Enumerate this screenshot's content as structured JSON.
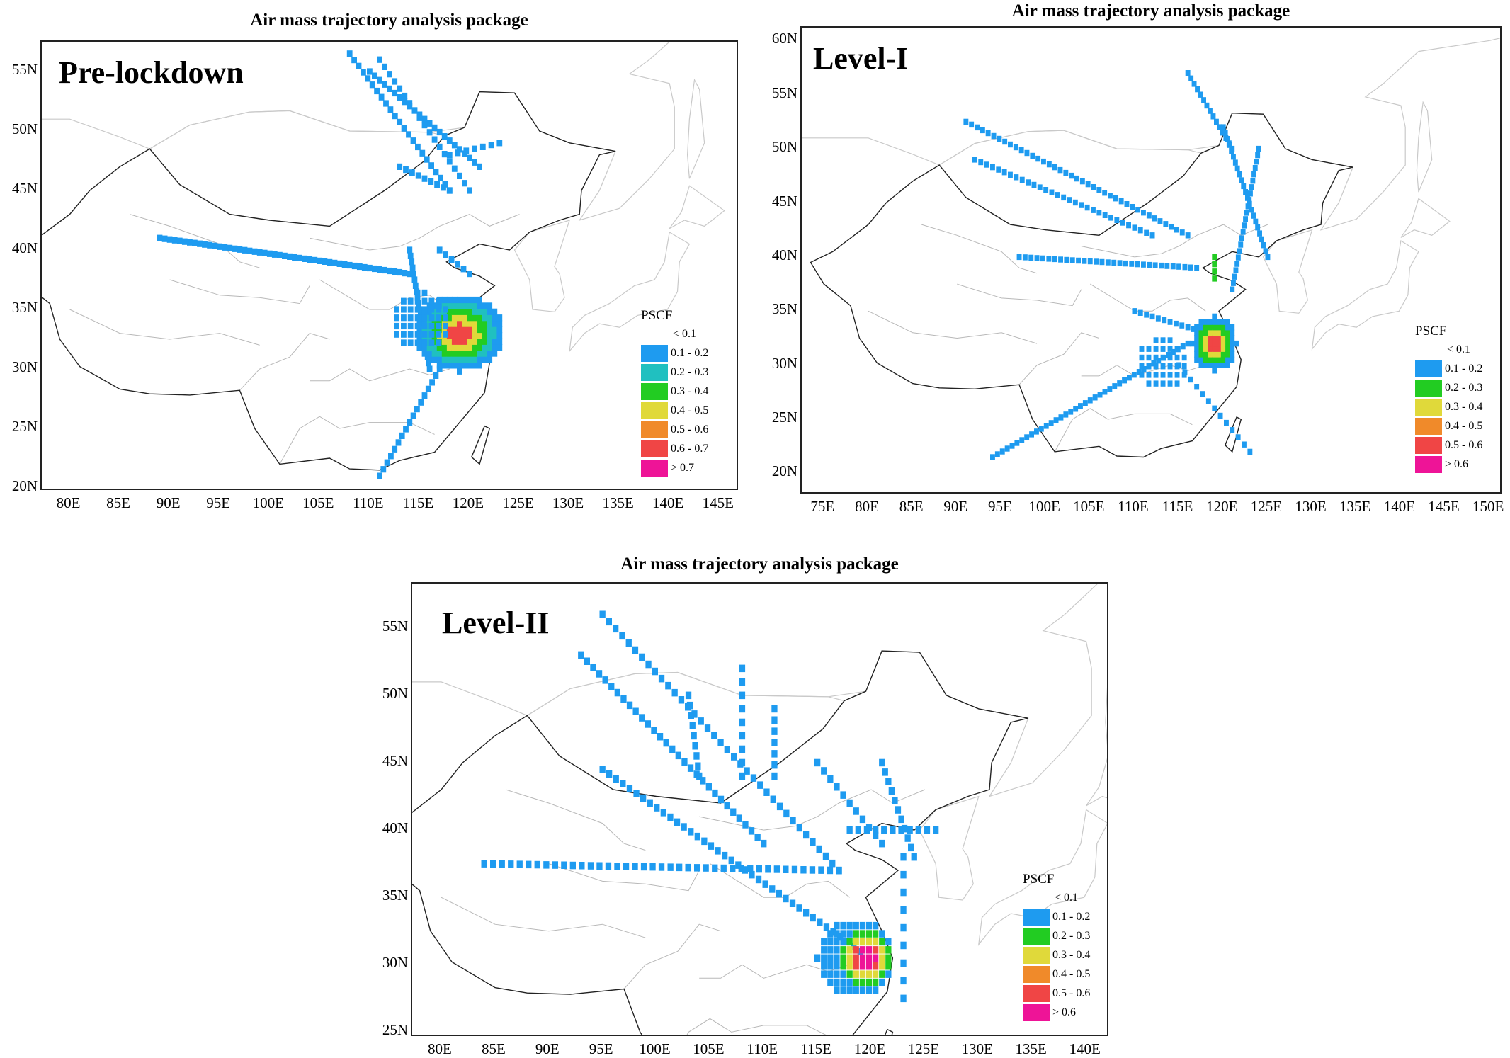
{
  "panels": [
    {
      "title": "Air mass trajectory analysis package",
      "label": "Pre-lockdown",
      "lat_ticks": [
        "55N",
        "50N",
        "45N",
        "40N",
        "35N",
        "30N",
        "25N",
        "20N"
      ],
      "lon_ticks": [
        "80E",
        "85E",
        "90E",
        "95E",
        "100E",
        "105E",
        "110E",
        "115E",
        "120E",
        "125E",
        "130E",
        "135E",
        "140E",
        "145E"
      ],
      "legend": {
        "title": "PSCF",
        "first": "< 0.1",
        "items": [
          {
            "label": "0.1 - 0.2",
            "color": "#1e9bf0"
          },
          {
            "label": "0.2 - 0.3",
            "color": "#20c0c0"
          },
          {
            "label": "0.3 - 0.4",
            "color": "#22cc22"
          },
          {
            "label": "0.4 - 0.5",
            "color": "#e0d93a"
          },
          {
            "label": "0.5 - 0.6",
            "color": "#f08a2a"
          },
          {
            "label": "0.6 - 0.7",
            "color": "#f04545"
          },
          {
            "label": "> 0.7",
            "color": "#ee1497"
          }
        ]
      }
    },
    {
      "title": "Air mass trajectory analysis package",
      "label": "Level-I",
      "lat_ticks": [
        "60N",
        "55N",
        "50N",
        "45N",
        "40N",
        "35N",
        "30N",
        "25N",
        "20N"
      ],
      "lon_ticks": [
        "75E",
        "80E",
        "85E",
        "90E",
        "95E",
        "100E",
        "105E",
        "110E",
        "115E",
        "120E",
        "125E",
        "130E",
        "135E",
        "140E",
        "145E",
        "150E"
      ],
      "legend": {
        "title": "PSCF",
        "first": "< 0.1",
        "items": [
          {
            "label": "0.1 - 0.2",
            "color": "#1e9bf0"
          },
          {
            "label": "0.2 - 0.3",
            "color": "#22cc22"
          },
          {
            "label": "0.3 - 0.4",
            "color": "#e0d93a"
          },
          {
            "label": "0.4 - 0.5",
            "color": "#f08a2a"
          },
          {
            "label": "0.5 - 0.6",
            "color": "#f04545"
          },
          {
            "label": "> 0.6",
            "color": "#ee1497"
          }
        ]
      }
    },
    {
      "title": "Air mass trajectory analysis package",
      "label": "Level-II",
      "lat_ticks": [
        "55N",
        "50N",
        "45N",
        "40N",
        "35N",
        "30N",
        "25N"
      ],
      "lon_ticks": [
        "80E",
        "85E",
        "90E",
        "95E",
        "100E",
        "105E",
        "110E",
        "115E",
        "120E",
        "125E",
        "130E",
        "135E",
        "140E"
      ],
      "legend": {
        "title": "PSCF",
        "first": "< 0.1",
        "items": [
          {
            "label": "0.1 - 0.2",
            "color": "#1e9bf0"
          },
          {
            "label": "0.2 - 0.3",
            "color": "#22cc22"
          },
          {
            "label": "0.3 - 0.4",
            "color": "#e0d93a"
          },
          {
            "label": "0.4 - 0.5",
            "color": "#f08a2a"
          },
          {
            "label": "0.5 - 0.6",
            "color": "#f04545"
          },
          {
            "label": "> 0.6",
            "color": "#ee1497"
          }
        ]
      }
    }
  ]
}
